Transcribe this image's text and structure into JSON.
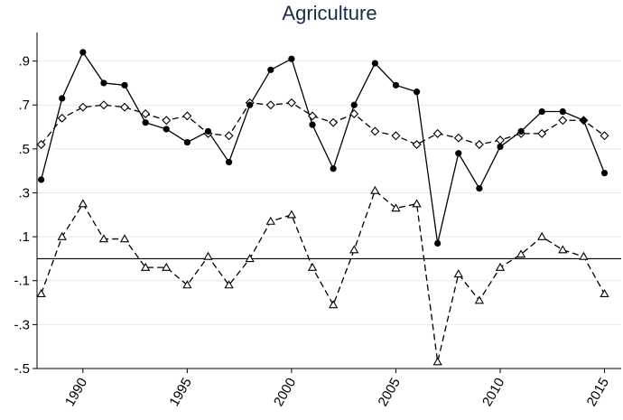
{
  "chart_data": {
    "type": "line",
    "title": "Agriculture",
    "xlabel": "",
    "ylabel": "",
    "xlim": [
      1987.8,
      2015.8
    ],
    "ylim": [
      -0.5,
      1.03
    ],
    "x_ticks": [
      1990,
      1995,
      2000,
      2005,
      2010,
      2015
    ],
    "x_tick_labels": [
      "1990",
      "1995",
      "2000",
      "2005",
      "2010",
      "2015"
    ],
    "y_ticks": [
      0.9,
      0.7,
      0.5,
      0.3,
      0.1,
      -0.1,
      -0.3,
      -0.5
    ],
    "y_tick_labels": [
      ".9",
      ".7",
      ".5",
      ".3",
      ".1",
      "-.1",
      "-.3",
      "-.5"
    ],
    "grid": true,
    "reference_line_y": 0,
    "legend": "none",
    "x": [
      1988,
      1989,
      1990,
      1991,
      1992,
      1993,
      1994,
      1995,
      1996,
      1997,
      1998,
      1999,
      2000,
      2001,
      2002,
      2003,
      2004,
      2005,
      2006,
      2007,
      2008,
      2009,
      2010,
      2011,
      2012,
      2013,
      2014,
      2015
    ],
    "series": [
      {
        "style": "solid",
        "marker": "circle",
        "values": [
          0.36,
          0.73,
          0.94,
          0.8,
          0.79,
          0.62,
          0.59,
          0.53,
          0.58,
          0.44,
          0.7,
          0.86,
          0.91,
          0.61,
          0.41,
          0.7,
          0.89,
          0.79,
          0.76,
          0.07,
          0.48,
          0.32,
          0.51,
          0.58,
          0.67,
          0.67,
          0.63,
          0.39
        ]
      },
      {
        "style": "dashed",
        "marker": "diamond",
        "values": [
          0.52,
          0.64,
          0.69,
          0.7,
          0.69,
          0.66,
          0.63,
          0.65,
          0.57,
          0.56,
          0.71,
          0.7,
          0.71,
          0.65,
          0.62,
          0.66,
          0.58,
          0.56,
          0.52,
          0.57,
          0.55,
          0.52,
          0.54,
          0.57,
          0.57,
          0.63,
          0.63,
          0.56
        ]
      },
      {
        "style": "dashed",
        "marker": "triangle",
        "values": [
          -0.16,
          0.1,
          0.25,
          0.09,
          0.09,
          -0.04,
          -0.04,
          -0.12,
          0.01,
          -0.12,
          0.0,
          0.17,
          0.2,
          -0.04,
          -0.21,
          0.04,
          0.31,
          0.23,
          0.25,
          -0.47,
          -0.07,
          -0.19,
          -0.04,
          0.02,
          0.1,
          0.04,
          0.01,
          -0.16
        ]
      }
    ]
  }
}
